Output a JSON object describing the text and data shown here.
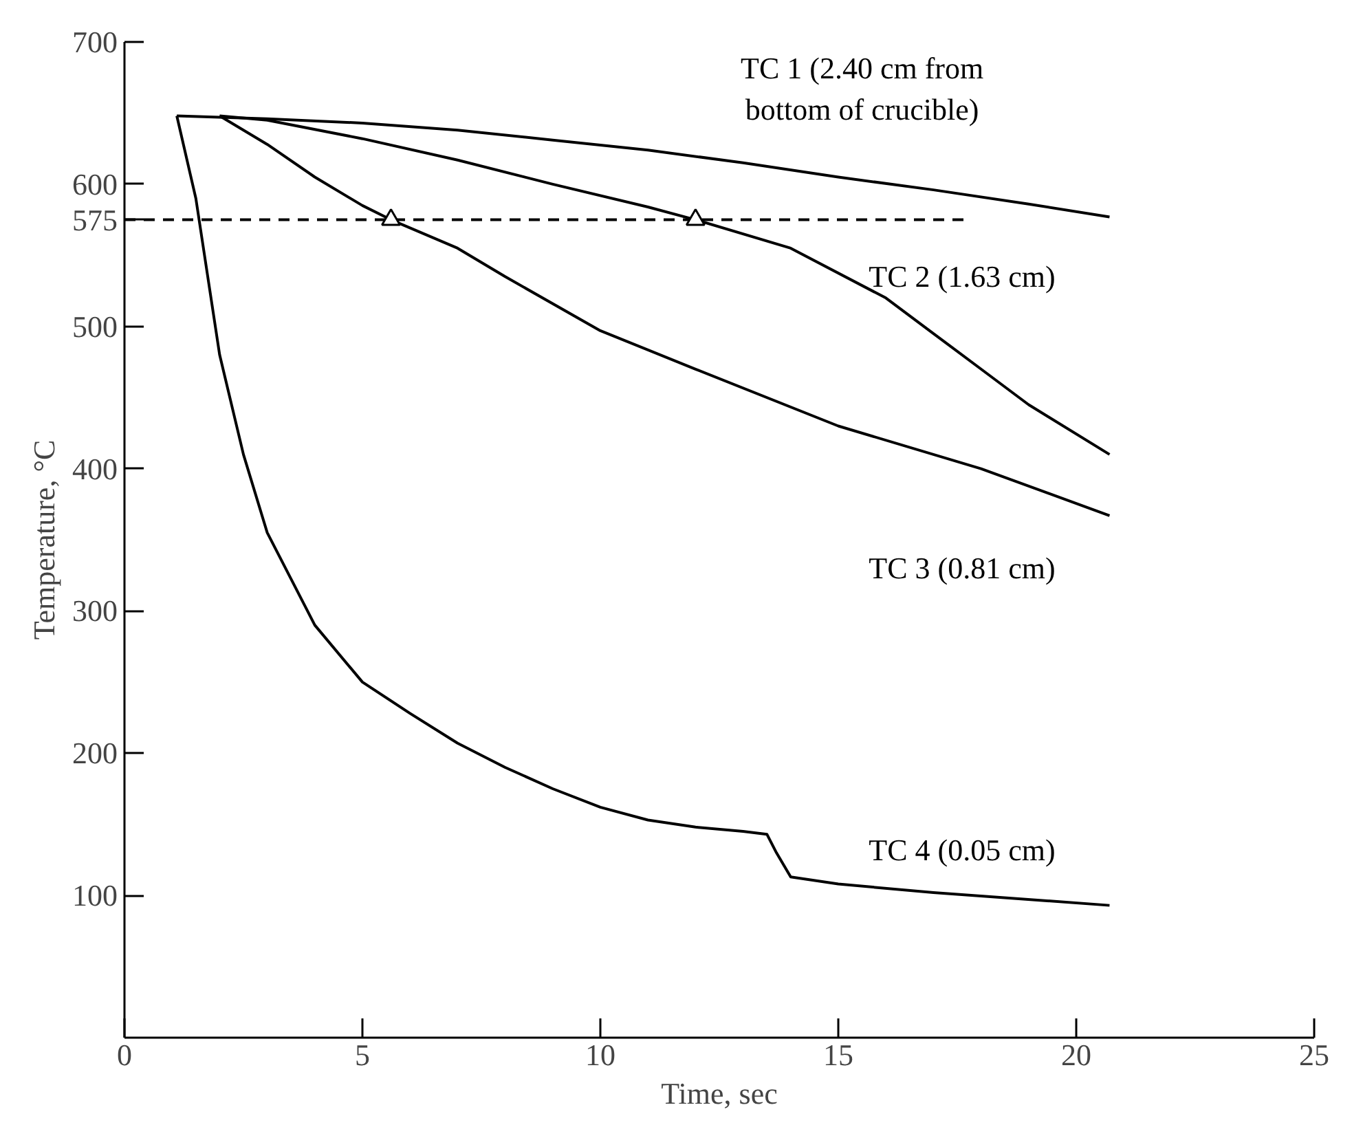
{
  "chart_data": {
    "type": "line",
    "xlabel": "Time, sec",
    "ylabel": "Temperature, °C",
    "xlim": [
      0,
      25
    ],
    "ylim": [
      0,
      700
    ],
    "xticks": [
      0,
      5,
      10,
      15,
      20,
      25
    ],
    "yticks": [
      100,
      200,
      300,
      400,
      500,
      575,
      600,
      700
    ],
    "grid": false,
    "marker": "none",
    "line_style": "solid",
    "series": [
      {
        "color": "#000000",
        "x": [
          1.1,
          3,
          5,
          7,
          9,
          11,
          13,
          15,
          17,
          19,
          20.7
        ],
        "values": [
          648,
          646,
          643,
          638,
          631,
          624,
          615,
          605,
          596,
          586,
          577
        ]
      },
      {
        "color": "#000000",
        "x": [
          2,
          3,
          5,
          7,
          9,
          11,
          12,
          14,
          16,
          17,
          18,
          19,
          20.7
        ],
        "values": [
          648,
          645,
          632,
          617,
          600,
          584,
          575,
          555,
          520,
          495,
          470,
          445,
          410
        ]
      },
      {
        "color": "#000000",
        "x": [
          2,
          3,
          4,
          5,
          5.6,
          7,
          8,
          10,
          12,
          15,
          18,
          20.7
        ],
        "values": [
          648,
          628,
          605,
          585,
          575,
          555,
          535,
          497,
          470,
          430,
          400,
          367
        ]
      },
      {
        "color": "#000000",
        "x": [
          1.1,
          1.5,
          2,
          2.5,
          3,
          4,
          5,
          6,
          7,
          8,
          9,
          10,
          11,
          12,
          13,
          13.5,
          13.7,
          14,
          15,
          17,
          20.7
        ],
        "values": [
          648,
          590,
          480,
          410,
          355,
          290,
          250,
          228,
          207,
          190,
          175,
          162,
          153,
          148,
          145,
          143,
          130,
          113,
          108,
          102,
          93
        ]
      },
      {
        "color": "#000000",
        "type": "line",
        "line_style": "dashed",
        "x": [
          0,
          17.7
        ],
        "values": [
          575,
          575
        ]
      },
      {
        "color": "#000000",
        "type": "scatter",
        "marker": "triangle",
        "x": [
          5.6,
          12
        ],
        "values": [
          575,
          575
        ]
      }
    ],
    "annotations": [
      "TC 1 (2.40 cm from\nbottom of crucible)",
      "TC 2 (1.63 cm)",
      "TC 3 (0.81 cm)",
      "TC 4 (0.05 cm)"
    ]
  }
}
